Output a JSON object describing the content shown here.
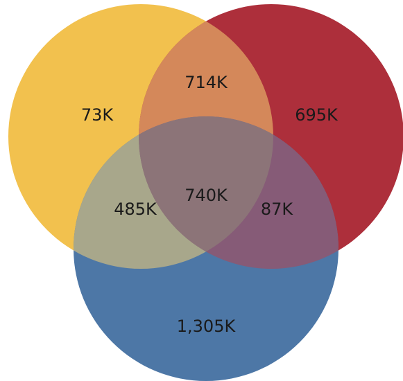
{
  "venn": {
    "sets": [
      {
        "key": "A",
        "color": "#f2c14e"
      },
      {
        "key": "B",
        "color": "#ad2f3b"
      },
      {
        "key": "C",
        "color": "#4d77a6"
      }
    ],
    "regions": {
      "a_only": "73K",
      "b_only": "695K",
      "c_only": "1,305K",
      "ab": "714K",
      "ac": "485K",
      "bc": "87K",
      "abc": "740K"
    },
    "colors": {
      "ab": "#d4885a",
      "ac": "#a8a78b",
      "bc": "#865b77",
      "abc": "#8c7478"
    }
  }
}
